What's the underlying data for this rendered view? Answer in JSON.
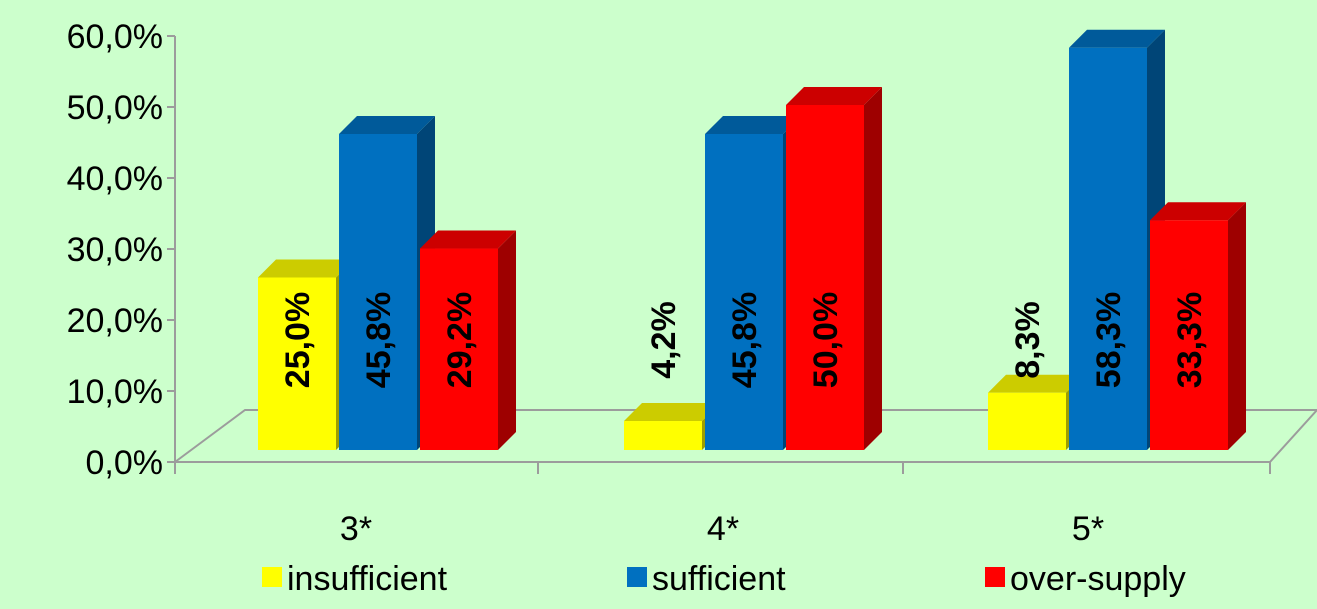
{
  "chart_data": {
    "type": "bar",
    "categories": [
      "3*",
      "4*",
      "5*"
    ],
    "series": [
      {
        "name": "insufficient",
        "values": [
          25.0,
          4.2,
          8.3
        ],
        "labels": [
          "25,0%",
          "4,2%",
          "8,3%"
        ],
        "color": "#ffff00"
      },
      {
        "name": "sufficient",
        "values": [
          45.8,
          45.8,
          58.3
        ],
        "labels": [
          "45,8%",
          "45,8%",
          "58,3%"
        ],
        "color": "#0070c0"
      },
      {
        "name": "over-supply",
        "values": [
          29.2,
          50.0,
          33.3
        ],
        "labels": [
          "29,2%",
          "50,0%",
          "33,3%"
        ],
        "color": "#ff0000"
      }
    ],
    "ylim": [
      0,
      60
    ],
    "y_ticks": [
      {
        "value": 0,
        "label": "0,0%"
      },
      {
        "value": 10,
        "label": "10,0%"
      },
      {
        "value": 20,
        "label": "20,0%"
      },
      {
        "value": 30,
        "label": "30,0%"
      },
      {
        "value": 40,
        "label": "40,0%"
      },
      {
        "value": 50,
        "label": "50,0%"
      },
      {
        "value": 60,
        "label": "60,0%"
      }
    ],
    "grid": false,
    "legend_position": "bottom",
    "background_color": "#ccffcc"
  }
}
